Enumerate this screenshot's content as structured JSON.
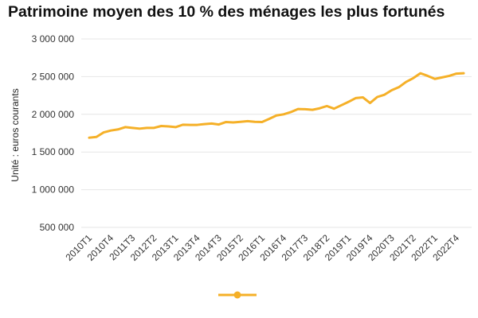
{
  "chart_data": {
    "type": "line",
    "title": "Patrimoine moyen des 10 % des ménages les plus fortunés",
    "ylabel": "Unité : euros courants",
    "xlabel": "",
    "ylim": [
      500000,
      3000000
    ],
    "y_ticks": [
      "500 000",
      "1 000 000",
      "1 500 000",
      "2 000 000",
      "2 500 000",
      "3 000 000"
    ],
    "y_tick_values": [
      500000,
      1000000,
      1500000,
      2000000,
      2500000,
      3000000
    ],
    "x_tick_labels": [
      "2010T1",
      "2010T4",
      "2011T3",
      "2012T2",
      "2013T1",
      "2013T4",
      "2014T3",
      "2015T2",
      "2016T1",
      "2016T4",
      "2017T3",
      "2018T2",
      "2019T1",
      "2019T4",
      "2020T3",
      "2021T2",
      "2022T1",
      "2022T4"
    ],
    "grid": true,
    "legend": "bottom",
    "color": "#f5b028",
    "series": [
      {
        "x": [
          "2010T1",
          "2010T2",
          "2010T3",
          "2010T4",
          "2011T1",
          "2011T2",
          "2011T3",
          "2011T4",
          "2012T1",
          "2012T2",
          "2012T3",
          "2012T4",
          "2013T1",
          "2013T2",
          "2013T3",
          "2013T4",
          "2014T1",
          "2014T2",
          "2014T3",
          "2014T4",
          "2015T1",
          "2015T2",
          "2015T3",
          "2015T4",
          "2016T1",
          "2016T2",
          "2016T3",
          "2016T4",
          "2017T1",
          "2017T2",
          "2017T3",
          "2017T4",
          "2018T1",
          "2018T2",
          "2018T3",
          "2018T4",
          "2019T1",
          "2019T2",
          "2019T3",
          "2019T4",
          "2020T1",
          "2020T2",
          "2020T3",
          "2020T4",
          "2021T1",
          "2021T2",
          "2021T3",
          "2021T4",
          "2022T1",
          "2022T2",
          "2022T3",
          "2022T4",
          "2023T1"
        ],
        "values": [
          1690000,
          1700000,
          1760000,
          1785000,
          1800000,
          1830000,
          1820000,
          1810000,
          1820000,
          1820000,
          1845000,
          1840000,
          1830000,
          1862000,
          1860000,
          1860000,
          1870000,
          1878000,
          1865000,
          1898000,
          1892000,
          1900000,
          1910000,
          1900000,
          1898000,
          1940000,
          1985000,
          2000000,
          2030000,
          2070000,
          2068000,
          2060000,
          2080000,
          2110000,
          2075000,
          2120000,
          2165000,
          2215000,
          2225000,
          2150000,
          2230000,
          2260000,
          2320000,
          2360000,
          2430000,
          2480000,
          2545000,
          2510000,
          2470000,
          2490000,
          2510000,
          2540000,
          2545000
        ]
      }
    ]
  }
}
